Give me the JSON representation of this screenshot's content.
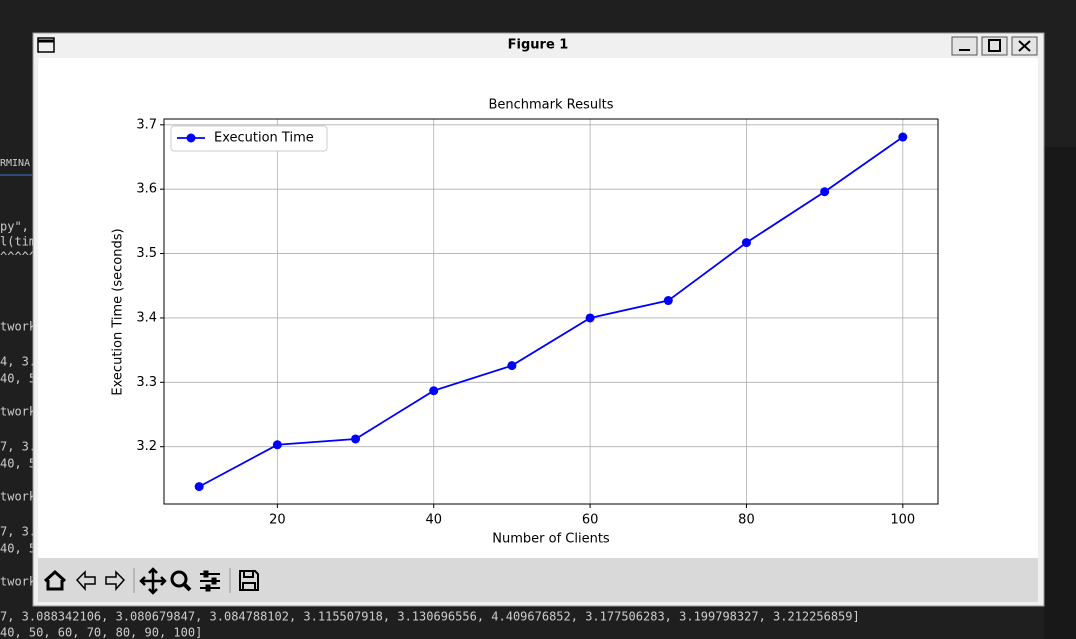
{
  "window": {
    "title": "Figure 1"
  },
  "terminal": {
    "tab": "RMINA",
    "lines": [
      "py\",",
      "l(tim",
      "^^^^^",
      "twork",
      "4, 3.",
      "40, 5",
      "twork",
      "7, 3.",
      "40, 5",
      "twork",
      "7, 3.",
      "40, 5",
      "twork"
    ],
    "bottom_lines": [
      "7, 3.088342106, 3.080679847, 3.084788102, 3.115507918, 3.130696556, 4.409676852, 3.177506283, 3.199798327, 3.212256859]",
      "40, 50, 60, 70, 80, 90, 100]"
    ]
  },
  "chart_data": {
    "type": "line",
    "title": "Benchmark Results",
    "x_label": "Number of Clients",
    "y_label": "Execution Time (seconds)",
    "x": [
      10,
      20,
      30,
      40,
      50,
      60,
      70,
      80,
      90,
      100
    ],
    "series": [
      {
        "name": "Execution Time",
        "color": "#0000ff",
        "values": [
          3.138,
          3.203,
          3.212,
          3.287,
          3.326,
          3.4,
          3.427,
          3.517,
          3.596,
          3.681
        ]
      }
    ],
    "xlim": [
      5.5,
      104.5
    ],
    "ylim": [
      3.111,
      3.709
    ],
    "xticks": [
      20,
      40,
      60,
      80,
      100
    ],
    "yticks": [
      3.2,
      3.3,
      3.4,
      3.5,
      3.6,
      3.7
    ],
    "grid": true,
    "legend": "upper left"
  }
}
